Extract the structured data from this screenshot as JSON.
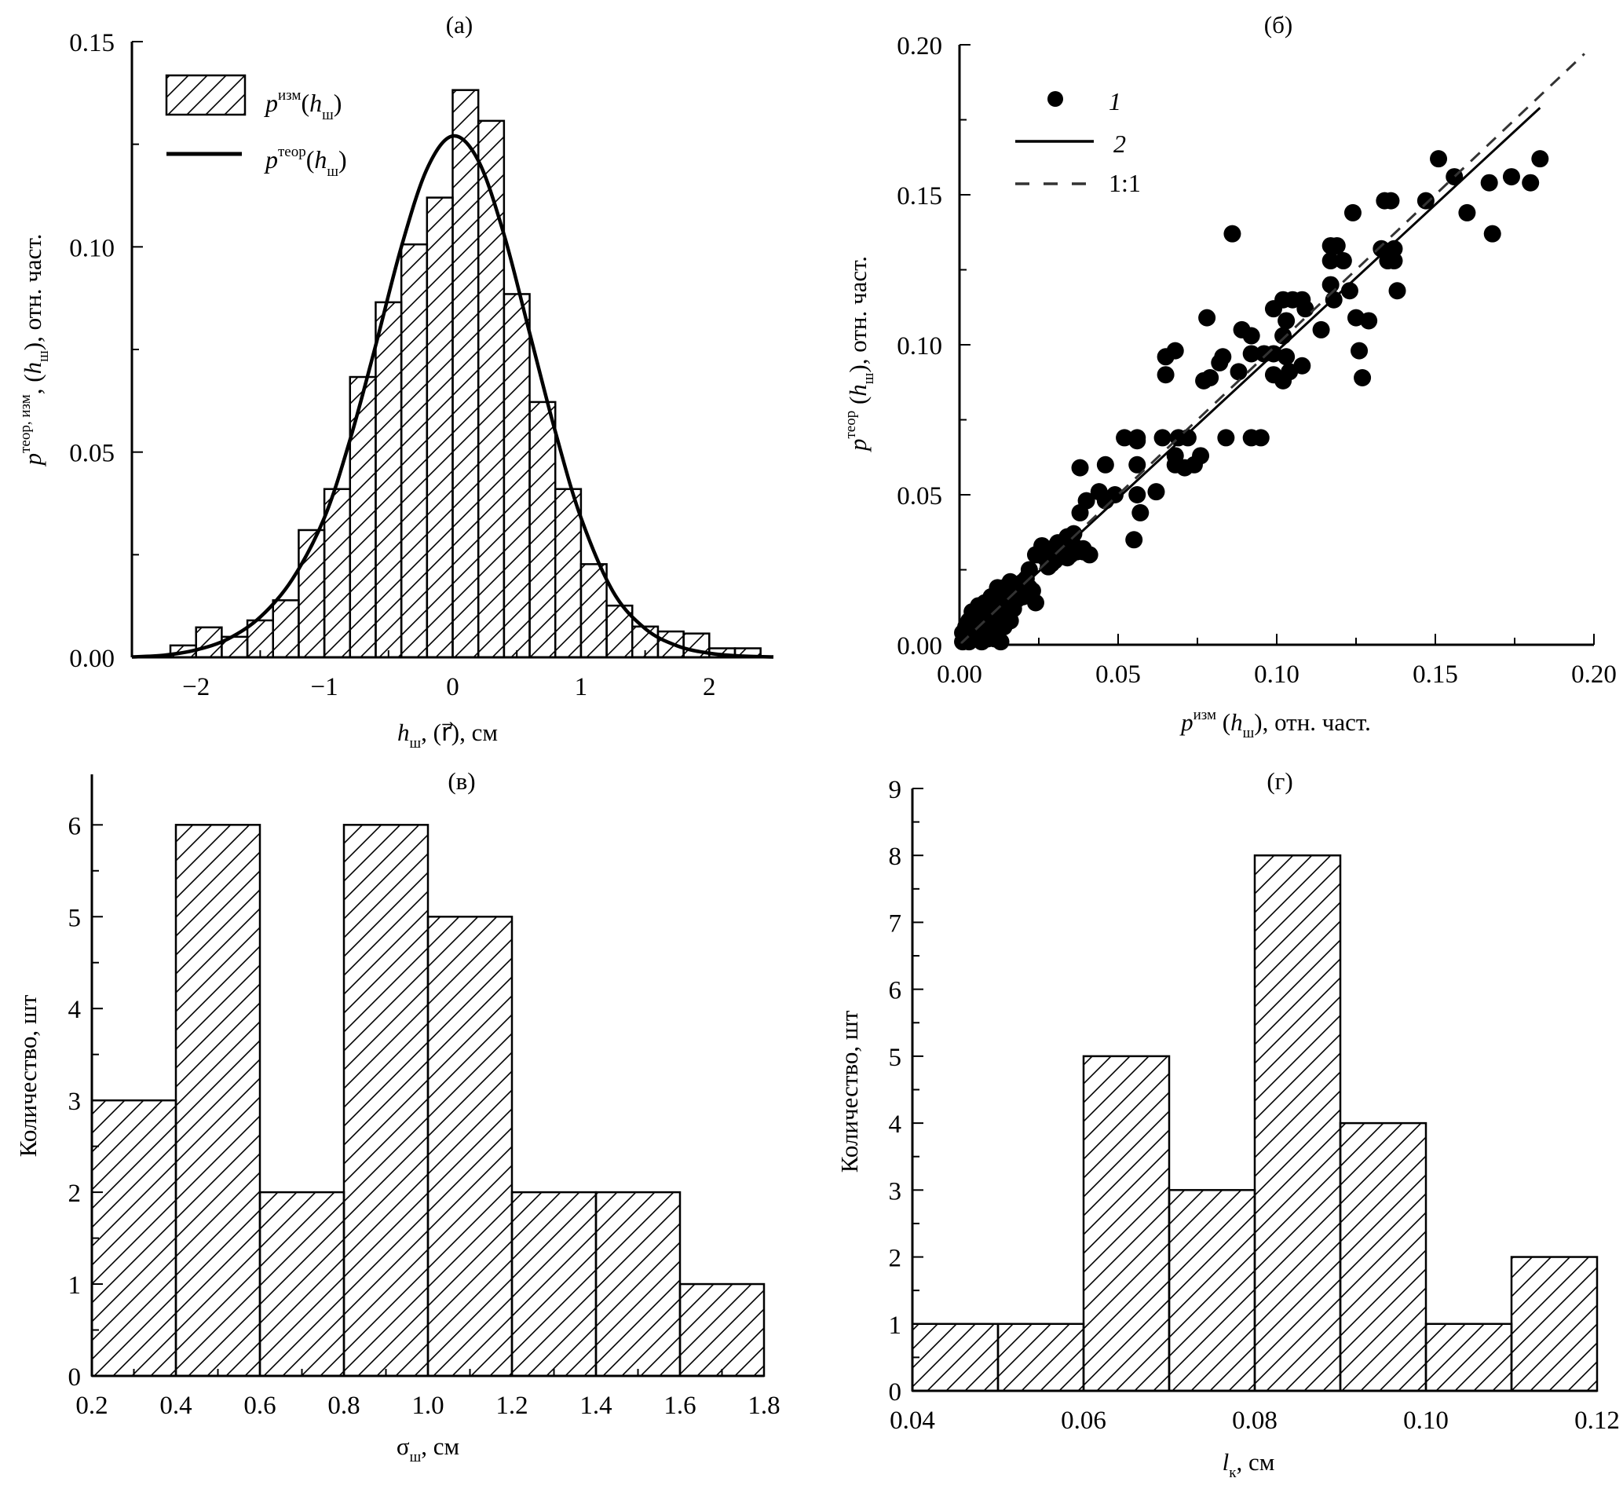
{
  "chart_data": [
    {
      "id": "a",
      "type": "bar",
      "title": "(а)",
      "xlabel": {
        "main": "h",
        "sub": "ш",
        "rest": ", (r⃗), см"
      },
      "ylabel": {
        "main": "p",
        "sup": "теор, изм",
        "rest1": ", (",
        "h": "h",
        "sub": "ш",
        "rest2": "), отн. част."
      },
      "xlim": [
        -2.5,
        2.5
      ],
      "ylim": [
        0,
        0.15
      ],
      "xticks": [
        -2,
        -1,
        0,
        1,
        2
      ],
      "xtick_labels": [
        "−2",
        "−1",
        "0",
        "1",
        "2"
      ],
      "yticks": [
        0,
        0.05,
        0.1,
        0.15
      ],
      "ytick_labels": [
        "0.00",
        "0.05",
        "0.10",
        "0.15"
      ],
      "bin_edges": [
        -2.2,
        -2.0,
        -1.8,
        -1.6,
        -1.4,
        -1.2,
        -1.0,
        -0.8,
        -0.6,
        -0.4,
        -0.2,
        0.0,
        0.2,
        0.4,
        0.6,
        0.8,
        1.0,
        1.2,
        1.4,
        1.6,
        1.8,
        2.0,
        2.2,
        2.4
      ],
      "series": [
        {
          "name": "p изм(h ш)",
          "kind": "histogram",
          "values": [
            0.0029,
            0.0073,
            0.005,
            0.009,
            0.0139,
            0.031,
            0.041,
            0.0683,
            0.0865,
            0.1006,
            0.112,
            0.1382,
            0.1307,
            0.0885,
            0.0622,
            0.041,
            0.0227,
            0.0126,
            0.0075,
            0.0063,
            0.0058,
            0.0022,
            0.0022
          ]
        },
        {
          "name": "p теор(h ш)",
          "kind": "line",
          "x": [
            -2.5,
            -2.25,
            -2.0,
            -1.75,
            -1.5,
            -1.25,
            -1.0,
            -0.8,
            -0.6,
            -0.4,
            -0.2,
            0.0,
            0.2,
            0.4,
            0.6,
            0.8,
            1.0,
            1.25,
            1.5,
            1.75,
            2.0,
            2.25,
            2.5
          ],
          "y": [
            0.0001,
            0.0005,
            0.0018,
            0.0045,
            0.0098,
            0.019,
            0.034,
            0.053,
            0.076,
            0.1,
            0.119,
            0.127,
            0.121,
            0.103,
            0.079,
            0.055,
            0.034,
            0.016,
            0.007,
            0.0028,
            0.001,
            0.0003,
            0.0001
          ]
        }
      ],
      "legend": {
        "placement": "top-left",
        "entries": [
          {
            "kind": "hatch",
            "p": "p",
            "sup": "изм",
            "rest1": "(",
            "h": "h",
            "sub": "ш",
            "rest2": ")"
          },
          {
            "kind": "line",
            "p": "p",
            "sup": "теор",
            "rest1": "(",
            "h": "h",
            "sub": "ш",
            "rest2": ")"
          }
        ]
      }
    },
    {
      "id": "b",
      "type": "scatter",
      "title": "(б)",
      "xlabel": {
        "main": "p",
        "sup": "изм",
        "rest1": " (",
        "h": "h",
        "sub": "ш",
        "rest2": "), отн. част."
      },
      "ylabel": {
        "main": "p",
        "sup": "теор",
        "rest1": " (",
        "h": "h",
        "sub": "ш",
        "rest2": "), отн. част."
      },
      "xlim": [
        0,
        0.2
      ],
      "ylim": [
        0,
        0.2
      ],
      "xticks": [
        0,
        0.05,
        0.1,
        0.15,
        0.2
      ],
      "xtick_labels": [
        "0.00",
        "0.05",
        "0.10",
        "0.15",
        "0.20"
      ],
      "yticks": [
        0,
        0.05,
        0.1,
        0.15,
        0.2
      ],
      "ytick_labels": [
        "0.00",
        "0.05",
        "0.10",
        "0.15",
        "0.20"
      ],
      "series": [
        {
          "name": "1",
          "kind": "points",
          "points": [
            [
              0.151,
              0.162
            ],
            [
              0.183,
              0.162
            ],
            [
              0.156,
              0.156
            ],
            [
              0.167,
              0.154
            ],
            [
              0.174,
              0.156
            ],
            [
              0.18,
              0.154
            ],
            [
              0.16,
              0.144
            ],
            [
              0.168,
              0.137
            ],
            [
              0.147,
              0.148
            ],
            [
              0.134,
              0.148
            ],
            [
              0.136,
              0.148
            ],
            [
              0.124,
              0.144
            ],
            [
              0.086,
              0.137
            ],
            [
              0.117,
              0.133
            ],
            [
              0.119,
              0.133
            ],
            [
              0.117,
              0.128
            ],
            [
              0.121,
              0.128
            ],
            [
              0.133,
              0.132
            ],
            [
              0.137,
              0.132
            ],
            [
              0.135,
              0.128
            ],
            [
              0.137,
              0.128
            ],
            [
              0.138,
              0.118
            ],
            [
              0.117,
              0.12
            ],
            [
              0.118,
              0.115
            ],
            [
              0.123,
              0.118
            ],
            [
              0.125,
              0.109
            ],
            [
              0.129,
              0.108
            ],
            [
              0.126,
              0.098
            ],
            [
              0.127,
              0.089
            ],
            [
              0.114,
              0.105
            ],
            [
              0.102,
              0.115
            ],
            [
              0.105,
              0.115
            ],
            [
              0.108,
              0.115
            ],
            [
              0.109,
              0.112
            ],
            [
              0.099,
              0.112
            ],
            [
              0.103,
              0.108
            ],
            [
              0.102,
              0.103
            ],
            [
              0.078,
              0.109
            ],
            [
              0.089,
              0.105
            ],
            [
              0.092,
              0.103
            ],
            [
              0.065,
              0.096
            ],
            [
              0.068,
              0.098
            ],
            [
              0.065,
              0.09
            ],
            [
              0.083,
              0.096
            ],
            [
              0.082,
              0.094
            ],
            [
              0.092,
              0.097
            ],
            [
              0.096,
              0.097
            ],
            [
              0.099,
              0.097
            ],
            [
              0.103,
              0.096
            ],
            [
              0.108,
              0.093
            ],
            [
              0.088,
              0.091
            ],
            [
              0.099,
              0.09
            ],
            [
              0.102,
              0.088
            ],
            [
              0.104,
              0.091
            ],
            [
              0.077,
              0.088
            ],
            [
              0.079,
              0.089
            ],
            [
              0.052,
              0.069
            ],
            [
              0.056,
              0.069
            ],
            [
              0.056,
              0.068
            ],
            [
              0.064,
              0.069
            ],
            [
              0.069,
              0.069
            ],
            [
              0.072,
              0.069
            ],
            [
              0.084,
              0.069
            ],
            [
              0.092,
              0.069
            ],
            [
              0.095,
              0.069
            ],
            [
              0.068,
              0.063
            ],
            [
              0.068,
              0.06
            ],
            [
              0.071,
              0.059
            ],
            [
              0.074,
              0.06
            ],
            [
              0.076,
              0.063
            ],
            [
              0.056,
              0.06
            ],
            [
              0.038,
              0.059
            ],
            [
              0.046,
              0.06
            ],
            [
              0.062,
              0.051
            ],
            [
              0.056,
              0.05
            ],
            [
              0.057,
              0.044
            ],
            [
              0.055,
              0.035
            ],
            [
              0.049,
              0.05
            ],
            [
              0.046,
              0.048
            ],
            [
              0.044,
              0.051
            ],
            [
              0.04,
              0.048
            ],
            [
              0.038,
              0.044
            ],
            [
              0.034,
              0.036
            ],
            [
              0.036,
              0.037
            ],
            [
              0.039,
              0.032
            ],
            [
              0.035,
              0.03
            ],
            [
              0.037,
              0.031
            ],
            [
              0.032,
              0.03
            ],
            [
              0.03,
              0.028
            ],
            [
              0.028,
              0.026
            ],
            [
              0.025,
              0.03
            ],
            [
              0.026,
              0.033
            ],
            [
              0.029,
              0.032
            ],
            [
              0.031,
              0.034
            ],
            [
              0.033,
              0.033
            ],
            [
              0.024,
              0.03
            ],
            [
              0.022,
              0.025
            ],
            [
              0.02,
              0.021
            ],
            [
              0.024,
              0.014
            ],
            [
              0.022,
              0.019
            ],
            [
              0.021,
              0.022
            ],
            [
              0.023,
              0.018
            ],
            [
              0.018,
              0.02
            ],
            [
              0.016,
              0.021
            ],
            [
              0.014,
              0.019
            ],
            [
              0.012,
              0.019
            ],
            [
              0.015,
              0.016
            ],
            [
              0.017,
              0.012
            ],
            [
              0.019,
              0.017
            ],
            [
              0.013,
              0.014
            ],
            [
              0.011,
              0.013
            ],
            [
              0.01,
              0.016
            ],
            [
              0.009,
              0.011
            ],
            [
              0.008,
              0.014
            ],
            [
              0.007,
              0.01
            ],
            [
              0.006,
              0.013
            ],
            [
              0.005,
              0.009
            ],
            [
              0.004,
              0.011
            ],
            [
              0.003,
              0.008
            ],
            [
              0.002,
              0.006
            ],
            [
              0.001,
              0.004
            ],
            [
              0.002,
              0.002
            ],
            [
              0.004,
              0.004
            ],
            [
              0.005,
              0.006
            ],
            [
              0.006,
              0.003
            ],
            [
              0.008,
              0.005
            ],
            [
              0.01,
              0.007
            ],
            [
              0.011,
              0.004
            ],
            [
              0.012,
              0.009
            ],
            [
              0.013,
              0.011
            ],
            [
              0.014,
              0.006
            ],
            [
              0.016,
              0.008
            ],
            [
              0.013,
              0.001
            ],
            [
              0.011,
              0.002
            ],
            [
              0.007,
              0.001
            ],
            [
              0.003,
              0.001
            ],
            [
              0.001,
              0.001
            ],
            [
              0.009,
              0.002
            ],
            [
              0.015,
              0.012
            ],
            [
              0.018,
              0.015
            ],
            [
              0.02,
              0.016
            ],
            [
              0.027,
              0.029
            ],
            [
              0.029,
              0.027
            ],
            [
              0.031,
              0.029
            ],
            [
              0.034,
              0.029
            ],
            [
              0.036,
              0.033
            ],
            [
              0.039,
              0.031
            ],
            [
              0.041,
              0.03
            ]
          ]
        },
        {
          "name": "2",
          "kind": "line",
          "x": [
            0,
            0.183
          ],
          "y": [
            0,
            0.179
          ]
        },
        {
          "name": "1:1",
          "kind": "dashed-line",
          "x": [
            0,
            0.197
          ],
          "y": [
            0,
            0.197
          ]
        }
      ],
      "legend": {
        "placement": "top-left",
        "entries": [
          {
            "kind": "marker",
            "label": "1"
          },
          {
            "kind": "line",
            "label": "2"
          },
          {
            "kind": "dashed",
            "label": "1:1"
          }
        ]
      }
    },
    {
      "id": "c",
      "type": "bar",
      "title": "(в)",
      "xlabel": {
        "main": "σ",
        "sub": "ш",
        "rest": ", см"
      },
      "ylabel": {
        "text": "Количество, шт"
      },
      "xlim": [
        0.2,
        1.8
      ],
      "ylim": [
        0,
        6.55
      ],
      "xticks": [
        0.2,
        0.4,
        0.6,
        0.8,
        1.0,
        1.2,
        1.4,
        1.6,
        1.8
      ],
      "xtick_labels": [
        "0.2",
        "0.4",
        "0.6",
        "0.8",
        "1.0",
        "1.2",
        "1.4",
        "1.6",
        "1.8"
      ],
      "yticks": [
        0,
        1,
        2,
        3,
        4,
        5,
        6
      ],
      "ytick_labels": [
        "0",
        "1",
        "2",
        "3",
        "4",
        "5",
        "6"
      ],
      "bin_edges": [
        0.2,
        0.4,
        0.6,
        0.8,
        1.0,
        1.2,
        1.4,
        1.6,
        1.8
      ],
      "values": [
        3,
        6,
        2,
        6,
        5,
        2,
        2,
        1
      ]
    },
    {
      "id": "d",
      "type": "bar",
      "title": "(г)",
      "xlabel": {
        "main": "l",
        "sub": "к",
        "rest": ", см"
      },
      "ylabel": {
        "text": "Количество, шт"
      },
      "xlim": [
        0.04,
        0.12
      ],
      "ylim": [
        0,
        9
      ],
      "xticks": [
        0.04,
        0.06,
        0.08,
        0.1,
        0.12
      ],
      "xtick_labels": [
        "0.04",
        "0.06",
        "0.08",
        "0.10",
        "0.12"
      ],
      "yticks": [
        0,
        1,
        2,
        3,
        4,
        5,
        6,
        7,
        8,
        9
      ],
      "ytick_labels": [
        "0",
        "1",
        "2",
        "3",
        "4",
        "5",
        "6",
        "7",
        "8",
        "9"
      ],
      "bin_edges": [
        0.04,
        0.05,
        0.06,
        0.07,
        0.08,
        0.09,
        0.1,
        0.11,
        0.12
      ],
      "values": [
        1,
        1,
        5,
        3,
        8,
        4,
        1,
        2
      ]
    }
  ]
}
